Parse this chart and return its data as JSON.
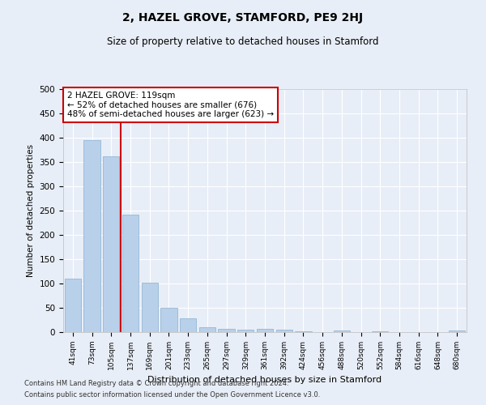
{
  "title": "2, HAZEL GROVE, STAMFORD, PE9 2HJ",
  "subtitle": "Size of property relative to detached houses in Stamford",
  "xlabel": "Distribution of detached houses by size in Stamford",
  "ylabel": "Number of detached properties",
  "categories": [
    "41sqm",
    "73sqm",
    "105sqm",
    "137sqm",
    "169sqm",
    "201sqm",
    "233sqm",
    "265sqm",
    "297sqm",
    "329sqm",
    "361sqm",
    "392sqm",
    "424sqm",
    "456sqm",
    "488sqm",
    "520sqm",
    "552sqm",
    "584sqm",
    "616sqm",
    "648sqm",
    "680sqm"
  ],
  "values": [
    110,
    395,
    362,
    241,
    102,
    50,
    29,
    10,
    7,
    5,
    6,
    5,
    2,
    0,
    3,
    0,
    2,
    0,
    0,
    0,
    4
  ],
  "bar_color": "#b8d0ea",
  "bar_edge_color": "#8ab0d0",
  "background_color": "#e8eef7",
  "grid_color": "#ffffff",
  "vline_color": "#cc0000",
  "annotation_text": "2 HAZEL GROVE: 119sqm\n← 52% of detached houses are smaller (676)\n48% of semi-detached houses are larger (623) →",
  "annotation_box_color": "#ffffff",
  "annotation_box_edge": "#cc0000",
  "ylim": [
    0,
    500
  ],
  "yticks": [
    0,
    50,
    100,
    150,
    200,
    250,
    300,
    350,
    400,
    450,
    500
  ],
  "footer_line1": "Contains HM Land Registry data © Crown copyright and database right 2024.",
  "footer_line2": "Contains public sector information licensed under the Open Government Licence v3.0."
}
